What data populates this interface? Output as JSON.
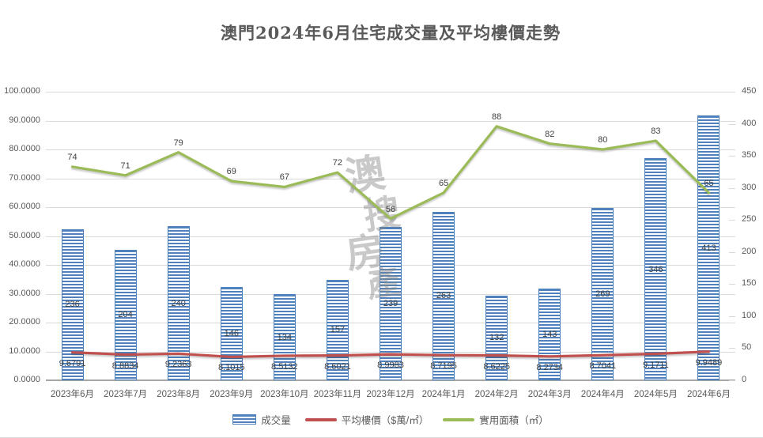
{
  "title": "澳門2024年6月住宅成交量及平均樓價走勢",
  "watermark": {
    "text": "澳搜房產",
    "chars": [
      "澳",
      "搜",
      "房",
      "產"
    ]
  },
  "legend": {
    "volume": "成交量",
    "price": "平均樓價（$萬/㎡）",
    "area": "實用面積（㎡）"
  },
  "colors": {
    "bar_blue": "#4f81bd",
    "price_red": "#c0504d",
    "area_green": "#9bbb59",
    "gridline": "#d9d9d9",
    "axis_text": "#595959",
    "data_label": "#3f3f3f"
  },
  "chart_data": {
    "type": "bar",
    "subtype": "combo-bar-and-two-lines",
    "title": "澳門2024年6月住宅成交量及平均樓價走勢",
    "categories": [
      "2023年6月",
      "2023年7月",
      "2023年8月",
      "2023年9月",
      "2023年10月",
      "2023年11月",
      "2023年12月",
      "2024年1月",
      "2024年2月",
      "2024年3月",
      "2024年4月",
      "2024年5月",
      "2024年6月"
    ],
    "series": [
      {
        "name": "成交量",
        "type": "bar",
        "axis": "right",
        "color": "#4f81bd",
        "values": [
          236,
          204,
          240,
          146,
          134,
          157,
          239,
          263,
          132,
          143,
          269,
          346,
          413
        ]
      },
      {
        "name": "平均樓價（$萬/㎡）",
        "type": "line",
        "axis": "left",
        "color": "#c0504d",
        "values": [
          "9.6791",
          "8.8834",
          "9.2363",
          "8.1015",
          "8.5132",
          "8.6021",
          "8.9983",
          "8.7195",
          "8.6225",
          "8.2734",
          "8.7041",
          "9.1711",
          "9.9489"
        ]
      },
      {
        "name": "實用面積（㎡）",
        "type": "line",
        "axis": "left",
        "color": "#9bbb59",
        "values": [
          74,
          71,
          79,
          69,
          67,
          72,
          56,
          65,
          88,
          82,
          80,
          83,
          65
        ]
      }
    ],
    "left_axis": {
      "min": 0,
      "max": 100,
      "step": 10,
      "ticks_top_to_bottom": [
        "100.0000",
        "90.0000",
        "80.0000",
        "70.0000",
        "60.0000",
        "50.0000",
        "40.0000",
        "30.0000",
        "20.0000",
        "10.0000",
        "0.0000"
      ]
    },
    "right_axis": {
      "min": 0,
      "max": 450,
      "step": 50,
      "ticks_top_to_bottom": [
        "450",
        "400",
        "350",
        "300",
        "250",
        "200",
        "150",
        "100",
        "50",
        "0"
      ]
    },
    "grid": true,
    "legend_position": "bottom"
  }
}
